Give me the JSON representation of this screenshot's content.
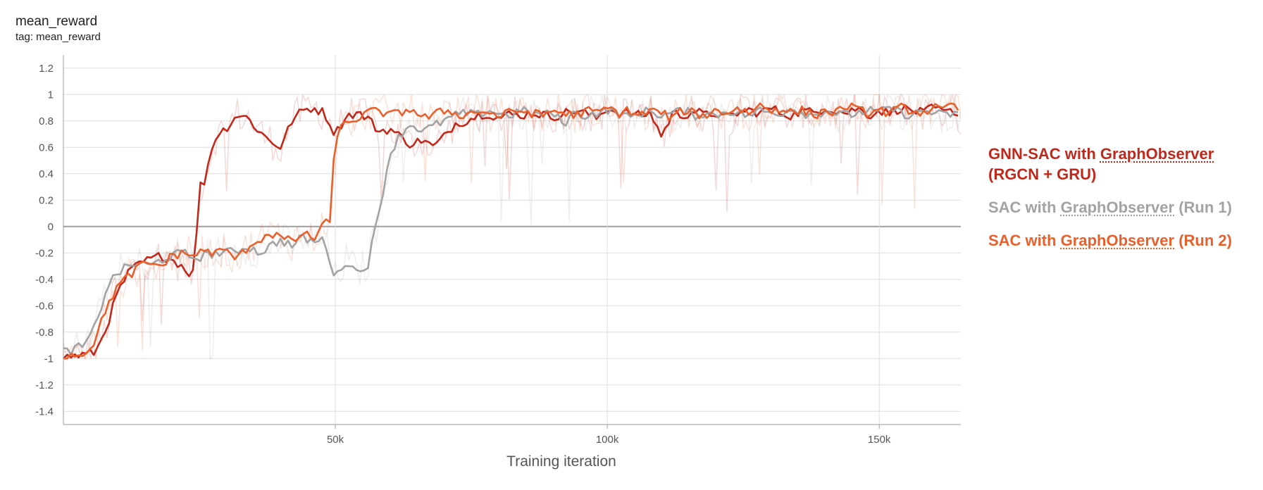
{
  "header": {
    "title": "mean_reward",
    "tag": "tag: mean_reward"
  },
  "colors": {
    "gnn": "#c0281b",
    "run1": "#a3a3a3",
    "run2": "#e8602c"
  },
  "legend": {
    "items": [
      {
        "prefix": "GNN-SAC with ",
        "link": "GraphObserver",
        "suffix": "",
        "line2": "(RGCN + GRU)"
      },
      {
        "prefix": "SAC with ",
        "link": "GraphObserver",
        "suffix": " (Run 1)"
      },
      {
        "prefix": "SAC with ",
        "link": "GraphObserver",
        "suffix": " (Run 2)"
      }
    ]
  },
  "chart_data": {
    "type": "line",
    "title": "mean_reward",
    "xlabel": "Training iteration",
    "ylabel": "",
    "xlim": [
      0,
      165000
    ],
    "ylim": [
      -1.5,
      1.3
    ],
    "xticks": [
      50000,
      100000,
      150000
    ],
    "xtick_labels": [
      "50k",
      "100k",
      "150k"
    ],
    "yticks": [
      -1.4,
      -1.2,
      -1,
      -0.8,
      -0.6,
      -0.4,
      -0.2,
      0,
      0.2,
      0.4,
      0.6,
      0.8,
      1,
      1.2
    ],
    "ytick_labels": [
      "-1.4",
      "-1.2",
      "-1",
      "-0.8",
      "-0.6",
      "-0.4",
      "-0.2",
      "0",
      "0.2",
      "0.4",
      "0.6",
      "0.8",
      "1",
      "1.2"
    ],
    "grid": true,
    "legend_position": "right",
    "series": [
      {
        "name": "GNN-SAC with GraphObserver (RGCN + GRU)",
        "color": "#c0281b",
        "x": [
          0,
          2000,
          4000,
          6000,
          8000,
          10000,
          12000,
          14000,
          16000,
          18000,
          20000,
          22000,
          23000,
          24000,
          25000,
          26000,
          27000,
          28000,
          30000,
          31000,
          32000,
          34000,
          36000,
          38000,
          40000,
          42000,
          44000,
          46000,
          48000,
          50000,
          52000,
          54000,
          56000,
          58000,
          60000,
          62000,
          64000,
          66000,
          68000,
          70000,
          72000,
          74000,
          76000,
          78000,
          80000,
          82000,
          84000,
          86000,
          88000,
          90000,
          92000,
          94000,
          96000,
          98000,
          100000,
          102000,
          104000,
          106000,
          108000,
          110000,
          112000,
          114000,
          116000,
          118000,
          120000,
          122000,
          124000,
          126000,
          128000,
          130000,
          132000,
          134000,
          136000,
          138000,
          140000,
          142000,
          144000,
          146000,
          148000,
          150000,
          152000,
          154000,
          156000,
          158000,
          160000,
          162000,
          164000,
          165000
        ],
        "y": [
          -0.99,
          -0.98,
          -0.97,
          -0.95,
          -0.75,
          -0.5,
          -0.35,
          -0.28,
          -0.25,
          -0.22,
          -0.25,
          -0.3,
          -0.35,
          -0.35,
          0.3,
          0.35,
          0.55,
          0.68,
          0.75,
          0.8,
          0.85,
          0.82,
          0.72,
          0.65,
          0.6,
          0.8,
          0.88,
          0.9,
          0.86,
          0.7,
          0.84,
          0.86,
          0.82,
          0.72,
          0.74,
          0.68,
          0.62,
          0.66,
          0.6,
          0.68,
          0.78,
          0.8,
          0.84,
          0.86,
          0.82,
          0.85,
          0.84,
          0.86,
          0.85,
          0.83,
          0.86,
          0.88,
          0.86,
          0.82,
          0.9,
          0.86,
          0.86,
          0.84,
          0.86,
          0.68,
          0.86,
          0.84,
          0.88,
          0.84,
          0.86,
          0.82,
          0.86,
          0.88,
          0.86,
          0.9,
          0.86,
          0.84,
          0.88,
          0.86,
          0.9,
          0.88,
          0.86,
          0.9,
          0.84,
          0.88,
          0.86,
          0.9,
          0.88,
          0.86,
          0.9,
          0.86,
          0.88,
          0.8
        ]
      },
      {
        "name": "SAC with GraphObserver (Run 1)",
        "color": "#a3a3a3",
        "x": [
          0,
          2000,
          4000,
          6000,
          8000,
          10000,
          12000,
          14000,
          16000,
          18000,
          20000,
          22000,
          24000,
          26000,
          28000,
          30000,
          32000,
          34000,
          36000,
          38000,
          40000,
          42000,
          44000,
          46000,
          48000,
          50000,
          52000,
          54000,
          56000,
          58000,
          60000,
          62000,
          64000,
          66000,
          68000,
          70000,
          72000,
          74000,
          76000,
          78000,
          80000,
          82000,
          84000,
          86000,
          88000,
          90000,
          92000,
          94000,
          96000,
          98000,
          100000,
          102000,
          104000,
          106000,
          108000,
          110000,
          112000,
          114000,
          116000,
          118000,
          120000,
          122000,
          124000,
          126000,
          128000,
          130000,
          132000,
          134000,
          136000,
          138000,
          140000,
          142000,
          144000,
          146000,
          148000,
          150000,
          152000,
          154000,
          156000,
          158000,
          160000,
          162000,
          164000,
          165000
        ],
        "y": [
          -0.95,
          -0.93,
          -0.9,
          -0.75,
          -0.45,
          -0.35,
          -0.3,
          -0.28,
          -0.3,
          -0.25,
          -0.22,
          -0.2,
          -0.24,
          -0.22,
          -0.2,
          -0.2,
          -0.18,
          -0.15,
          -0.2,
          -0.15,
          -0.1,
          -0.15,
          -0.08,
          -0.12,
          -0.1,
          -0.4,
          -0.25,
          -0.35,
          -0.28,
          0.1,
          0.55,
          0.7,
          0.78,
          0.72,
          0.76,
          0.8,
          0.84,
          0.86,
          0.84,
          0.88,
          0.86,
          0.84,
          0.88,
          0.86,
          0.84,
          0.86,
          0.78,
          0.86,
          0.84,
          0.86,
          0.88,
          0.86,
          0.82,
          0.86,
          0.88,
          0.84,
          0.86,
          0.88,
          0.84,
          0.86,
          0.84,
          0.88,
          0.86,
          0.84,
          0.88,
          0.86,
          0.86,
          0.9,
          0.86,
          0.84,
          0.88,
          0.86,
          0.84,
          0.86,
          0.88,
          0.86,
          0.9,
          0.86,
          0.84,
          0.88,
          0.86,
          0.84,
          0.86,
          0.85
        ]
      },
      {
        "name": "SAC with GraphObserver (Run 2)",
        "color": "#e8602c",
        "x": [
          0,
          2000,
          4000,
          6000,
          8000,
          10000,
          12000,
          14000,
          16000,
          18000,
          20000,
          22000,
          24000,
          26000,
          28000,
          30000,
          32000,
          34000,
          36000,
          38000,
          40000,
          42000,
          44000,
          46000,
          48000,
          49000,
          50000,
          52000,
          54000,
          56000,
          58000,
          60000,
          62000,
          64000,
          66000,
          68000,
          70000,
          72000,
          74000,
          76000,
          78000,
          80000,
          82000,
          84000,
          86000,
          88000,
          90000,
          92000,
          94000,
          96000,
          98000,
          100000,
          102000,
          104000,
          106000,
          108000,
          110000,
          112000,
          114000,
          116000,
          118000,
          120000,
          122000,
          124000,
          126000,
          128000,
          130000,
          132000,
          134000,
          136000,
          138000,
          140000,
          142000,
          144000,
          146000,
          148000,
          150000,
          152000,
          154000,
          156000,
          158000,
          160000,
          162000,
          164000,
          165000
        ],
        "y": [
          -0.98,
          -0.97,
          -0.96,
          -0.85,
          -0.6,
          -0.45,
          -0.38,
          -0.3,
          -0.28,
          -0.3,
          -0.22,
          -0.2,
          -0.22,
          -0.18,
          -0.2,
          -0.18,
          -0.25,
          -0.15,
          -0.1,
          -0.05,
          -0.08,
          -0.12,
          -0.05,
          -0.1,
          0.05,
          0.0,
          0.7,
          0.78,
          0.82,
          0.86,
          0.88,
          0.84,
          0.86,
          0.9,
          0.82,
          0.84,
          0.88,
          0.86,
          0.84,
          0.88,
          0.86,
          0.84,
          0.86,
          0.88,
          0.86,
          0.84,
          0.88,
          0.86,
          0.84,
          0.88,
          0.86,
          0.9,
          0.86,
          0.88,
          0.84,
          0.88,
          0.86,
          0.82,
          0.88,
          0.86,
          0.84,
          0.88,
          0.86,
          0.9,
          0.86,
          0.92,
          0.88,
          0.9,
          0.86,
          0.88,
          0.84,
          0.88,
          0.86,
          0.92,
          0.88,
          0.86,
          0.88,
          0.86,
          0.9,
          0.88,
          0.86,
          0.9,
          0.88,
          0.92,
          0.86
        ]
      }
    ]
  }
}
